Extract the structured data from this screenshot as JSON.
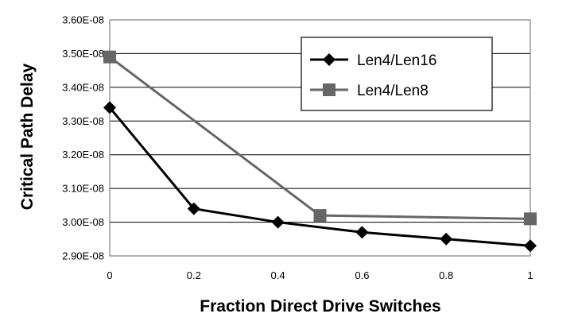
{
  "chart_data": {
    "type": "line",
    "xlabel": "Fraction Direct Drive Switches",
    "ylabel": "Critical Path Delay",
    "xlim": [
      0,
      1
    ],
    "ylim": [
      2.9e-08,
      3.6e-08
    ],
    "x_ticks": [
      {
        "value": 0,
        "label": "0"
      },
      {
        "value": 0.2,
        "label": "0.2"
      },
      {
        "value": 0.4,
        "label": "0.4"
      },
      {
        "value": 0.6,
        "label": "0.6"
      },
      {
        "value": 0.8,
        "label": "0.8"
      },
      {
        "value": 1,
        "label": "1"
      }
    ],
    "y_ticks": [
      {
        "value": 2.9e-08,
        "label": "2.90E-08"
      },
      {
        "value": 3e-08,
        "label": "3.00E-08"
      },
      {
        "value": 3.1e-08,
        "label": "3.10E-08"
      },
      {
        "value": 3.2e-08,
        "label": "3.20E-08"
      },
      {
        "value": 3.3e-08,
        "label": "3.30E-08"
      },
      {
        "value": 3.4e-08,
        "label": "3.40E-08"
      },
      {
        "value": 3.5e-08,
        "label": "3.50E-08"
      },
      {
        "value": 3.6e-08,
        "label": "3.60E-08"
      }
    ],
    "grid": "horizontal",
    "legend_position": "top-right",
    "series": [
      {
        "name": "Len4/Len16",
        "marker": "diamond",
        "color": "#000000",
        "points": [
          {
            "x": 0,
            "y": 3.34e-08
          },
          {
            "x": 0.2,
            "y": 3.04e-08
          },
          {
            "x": 0.4,
            "y": 3e-08
          },
          {
            "x": 0.6,
            "y": 2.97e-08
          },
          {
            "x": 0.8,
            "y": 2.95e-08
          },
          {
            "x": 1,
            "y": 2.93e-08
          }
        ]
      },
      {
        "name": "Len4/Len8",
        "marker": "square",
        "color": "#666666",
        "points": [
          {
            "x": 0,
            "y": 3.49e-08
          },
          {
            "x": 0.5,
            "y": 3.02e-08
          },
          {
            "x": 1,
            "y": 3.01e-08
          }
        ]
      }
    ]
  }
}
